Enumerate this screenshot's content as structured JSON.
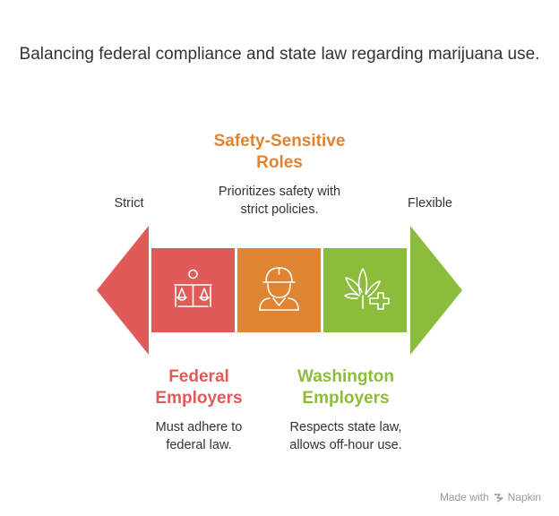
{
  "title": "Balancing federal compliance and state law regarding marijuana use.",
  "scale": {
    "left_label": "Strict",
    "right_label": "Flexible"
  },
  "segments": [
    {
      "heading": "Federal Employers",
      "description": "Must adhere to federal law.",
      "color": "#E05A5A",
      "icon": "scales-of-justice-icon"
    },
    {
      "heading": "Safety-Sensitive Roles",
      "description": "Prioritizes safety with strict policies.",
      "color": "#DF8432",
      "icon": "hard-hat-worker-icon"
    },
    {
      "heading": "Washington Employers",
      "description": "Respects state law, allows off-hour use.",
      "color": "#8CBC3C",
      "icon": "cannabis-leaf-plus-icon"
    }
  ],
  "footer": {
    "made_with": "Made with",
    "brand": "Napkin"
  }
}
